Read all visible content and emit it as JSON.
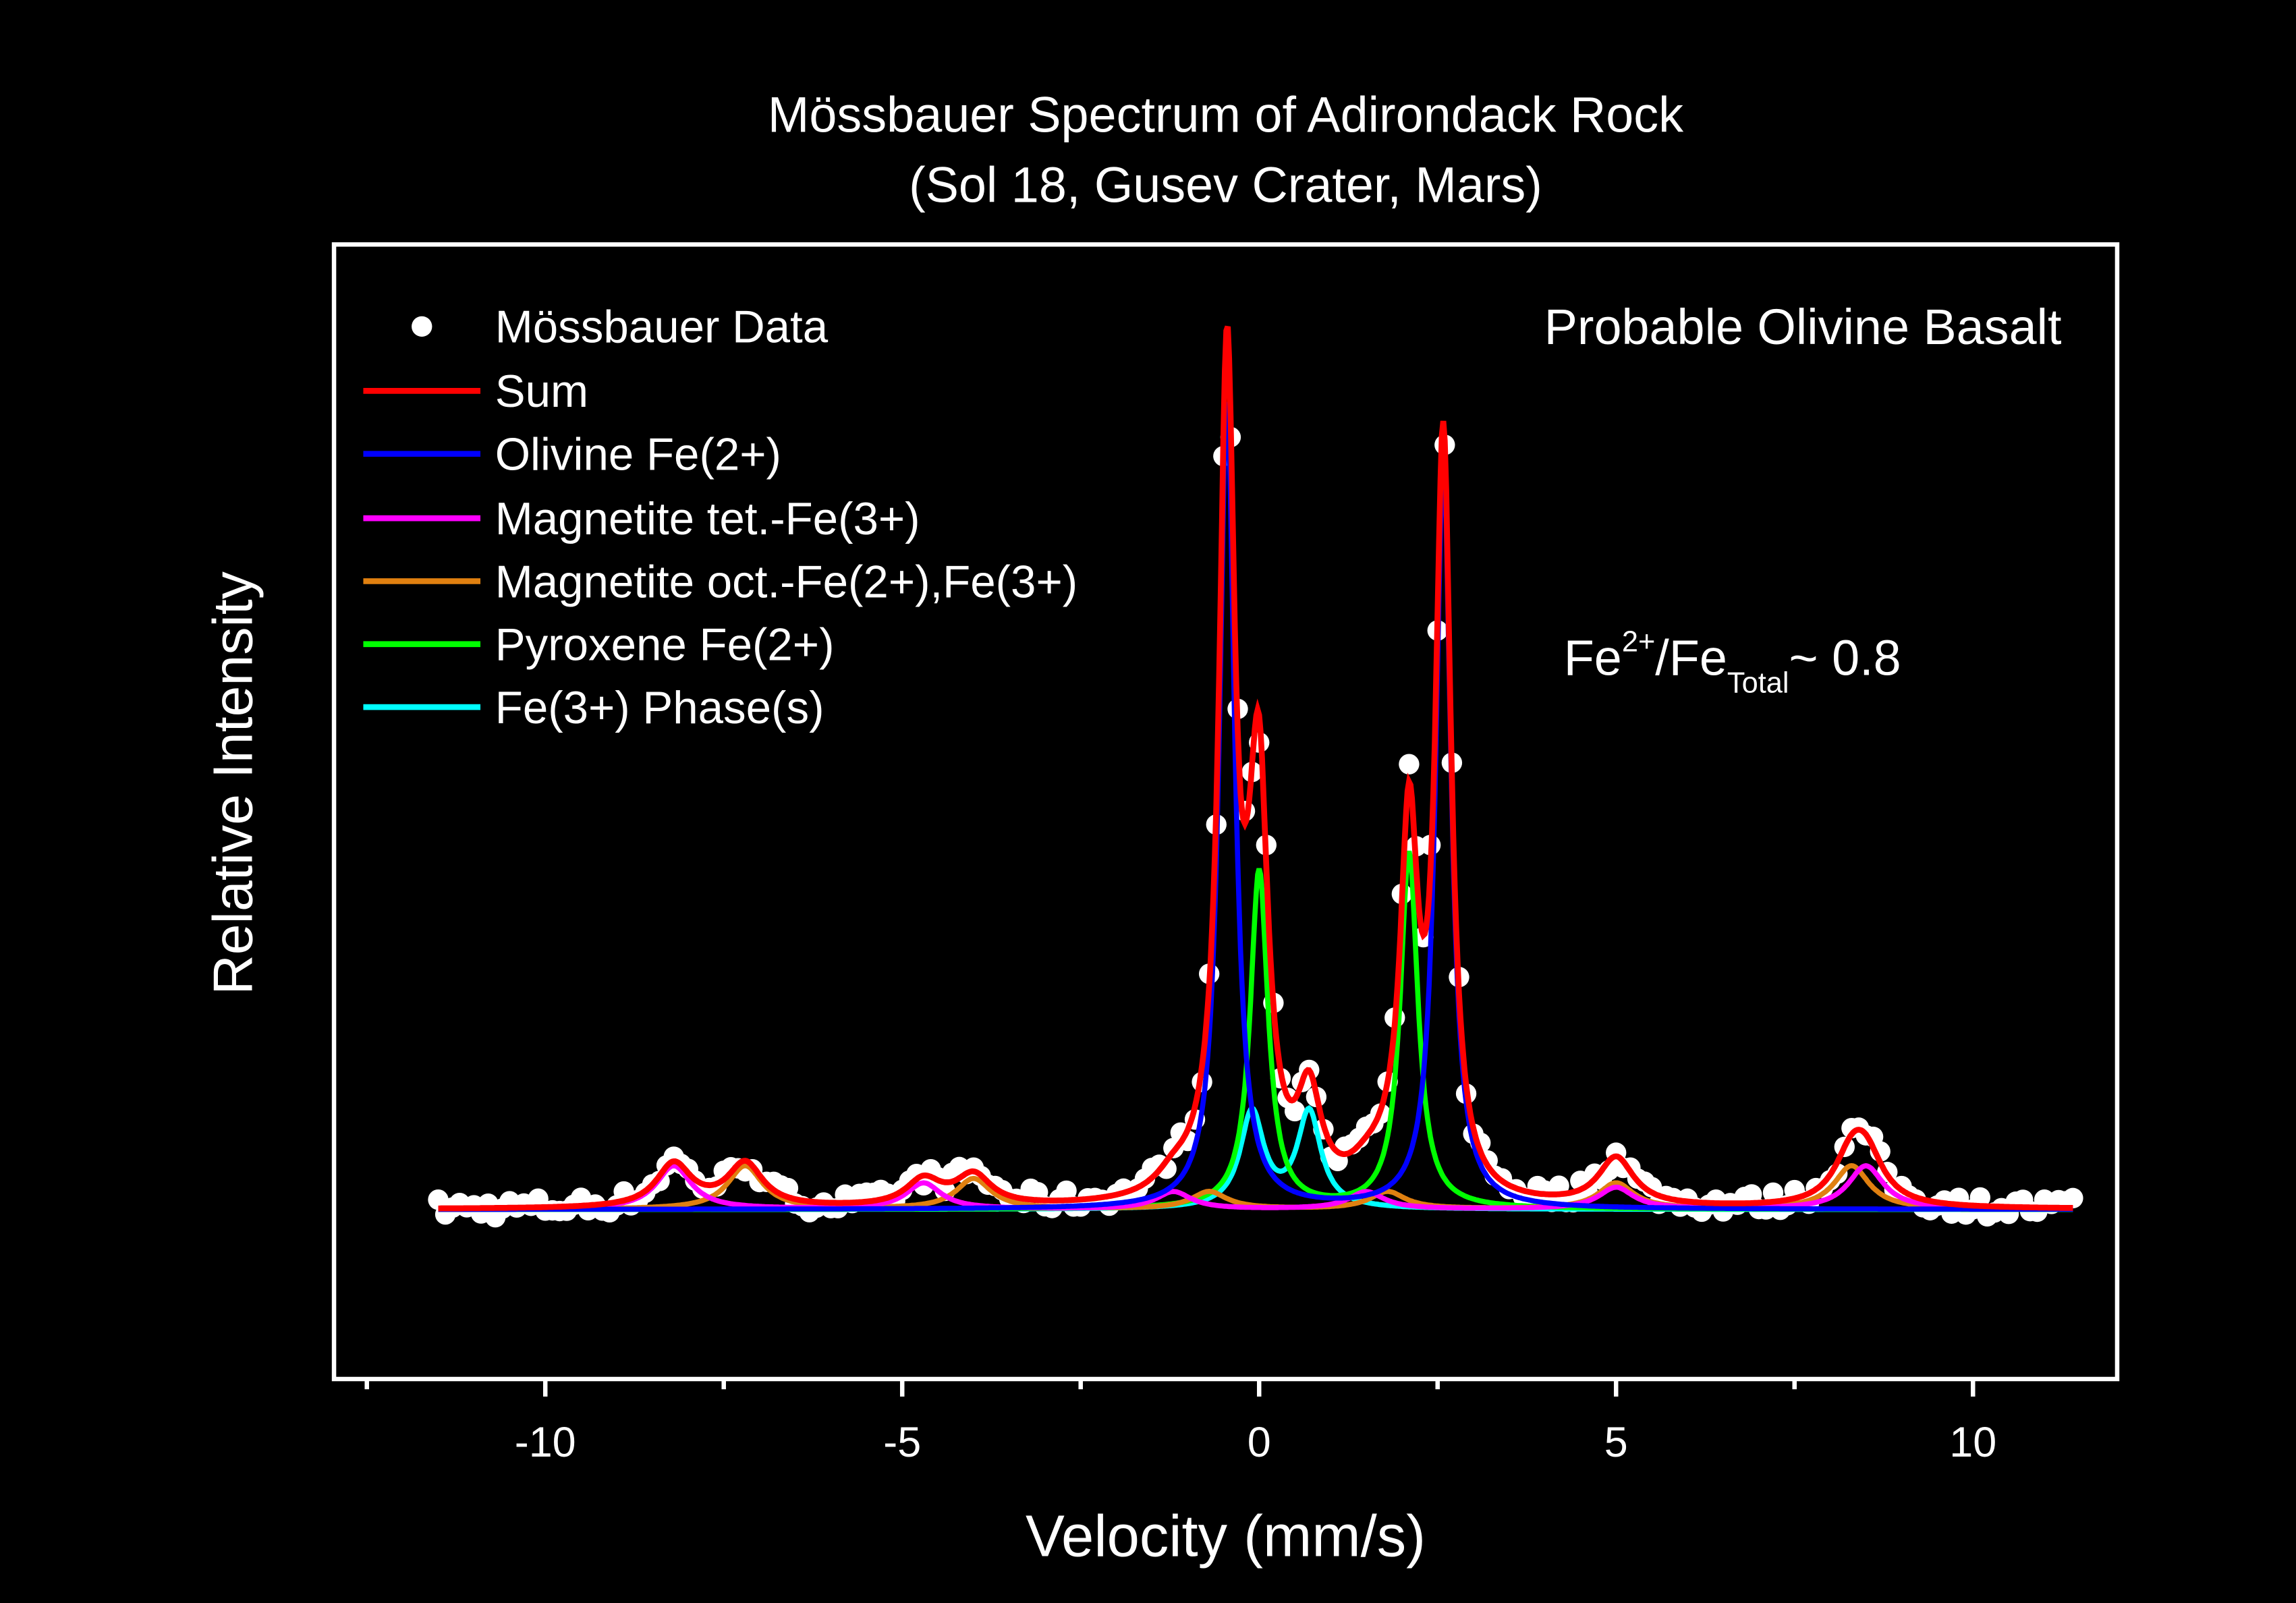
{
  "chart_data": {
    "type": "line",
    "title": "Mössbauer Spectrum of Adirondack Rock",
    "subtitle": "(Sol 18, Gusev Crater, Mars)",
    "xlabel": "Velocity (mm/s)",
    "ylabel": "Relative Intensity",
    "xlim": [
      -12.96,
      12.02
    ],
    "ylim": [
      -0.195,
      1.11
    ],
    "x_ticks": [
      -10,
      -5,
      0,
      5,
      10
    ],
    "x_tick_labels": [
      "-10",
      "-5",
      "0",
      "5",
      "10"
    ],
    "x_minor_ticks": [
      -12.5,
      -7.5,
      -2.5,
      2.5,
      7.5
    ],
    "grid": false,
    "legend_position": "top-left",
    "annotations": {
      "rock_type": "Probable Olivine Basalt",
      "ratio_prefix": "Fe",
      "ratio_sup": "2+",
      "ratio_mid": "/Fe",
      "ratio_sub": "Total",
      "ratio_value": "~ 0.8"
    },
    "data_series": {
      "name": "Mössbauer Data",
      "color": "#ffffff",
      "x_range": [
        -11.5,
        11.4
      ],
      "step": 0.1,
      "noise": 0.012
    },
    "series": [
      {
        "name": "Sum",
        "color": "#ff0000",
        "is_sum": true
      },
      {
        "name": "Olivine Fe(2+)",
        "color": "#0000ff",
        "peaks": [
          [
            -0.45,
            0.93,
            0.13
          ],
          [
            2.58,
            0.86,
            0.13
          ]
        ]
      },
      {
        "name": "Magnetite tet.-Fe(3+)",
        "color": "#ff00ff",
        "peaks": [
          [
            -8.2,
            0.05,
            0.3
          ],
          [
            -4.7,
            0.03,
            0.3
          ],
          [
            -1.2,
            0.02,
            0.3
          ],
          [
            1.5,
            0.02,
            0.3
          ],
          [
            5.0,
            0.025,
            0.3
          ],
          [
            8.5,
            0.05,
            0.3
          ]
        ]
      },
      {
        "name": "Magnetite oct.-Fe(2+),Fe(3+)",
        "color": "#e08010",
        "peaks": [
          [
            -7.2,
            0.05,
            0.3
          ],
          [
            -4.0,
            0.035,
            0.3
          ],
          [
            -0.7,
            0.02,
            0.3
          ],
          [
            1.8,
            0.02,
            0.3
          ],
          [
            5.0,
            0.03,
            0.3
          ],
          [
            8.3,
            0.05,
            0.3
          ]
        ]
      },
      {
        "name": "Pyroxene Fe(2+)",
        "color": "#00ff00",
        "peaks": [
          [
            0.0,
            0.39,
            0.15
          ],
          [
            2.1,
            0.41,
            0.15
          ]
        ]
      },
      {
        "name": "Fe(3+) Phase(s)",
        "color": "#00ffff",
        "peaks": [
          [
            -0.1,
            0.11,
            0.2
          ],
          [
            0.7,
            0.11,
            0.2
          ]
        ]
      }
    ]
  }
}
